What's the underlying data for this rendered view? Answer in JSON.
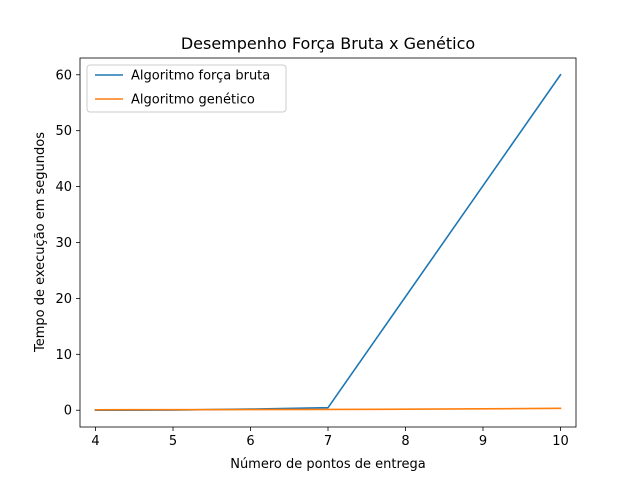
{
  "chart_data": {
    "type": "line",
    "title": "Desempenho Força Bruta x Genético",
    "xlabel": "Número de pontos de entrega",
    "ylabel": "Tempo de execução em segundos",
    "xlim": [
      3.8,
      10.2
    ],
    "ylim": [
      -3.0,
      63.0
    ],
    "xticks": [
      4,
      5,
      6,
      7,
      8,
      9,
      10
    ],
    "yticks": [
      0,
      10,
      20,
      30,
      40,
      50,
      60
    ],
    "grid": false,
    "legend_position": "top-left",
    "x": [
      4,
      5,
      6,
      7,
      8,
      9,
      10
    ],
    "series": [
      {
        "name": "Algoritmo força bruta",
        "color": "#1f77b4",
        "x": [
          4,
          5,
          6,
          7,
          10
        ],
        "values": [
          0.0,
          0.03,
          0.2,
          0.45,
          60.0
        ]
      },
      {
        "name": "Algoritmo genético",
        "color": "#ff7f0e",
        "x": [
          4,
          5,
          6,
          7,
          8,
          9,
          10
        ],
        "values": [
          0.08,
          0.1,
          0.12,
          0.15,
          0.18,
          0.25,
          0.35
        ]
      }
    ]
  }
}
